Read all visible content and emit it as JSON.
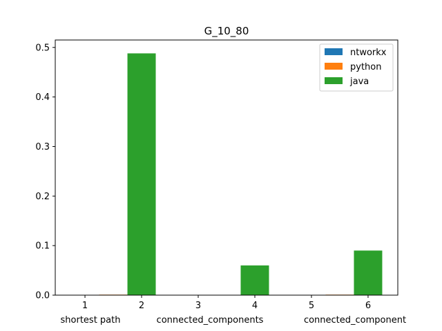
{
  "chart_data": {
    "type": "bar",
    "title": "G_10_80",
    "xlabel": "",
    "ylabel": "",
    "x_ticks": [
      1,
      2,
      3,
      4,
      5,
      6
    ],
    "group_labels": [
      "shortest path",
      "connected_components",
      "connected_component"
    ],
    "ylim": [
      0,
      0.515
    ],
    "y_ticks": [
      "0.0",
      "0.1",
      "0.2",
      "0.3",
      "0.4",
      "0.5"
    ],
    "legend_position": "top-right",
    "grid": false,
    "series": [
      {
        "name": "ntworkx",
        "color": "#1f77b4",
        "x": [
          1,
          3,
          5
        ],
        "values": [
          0.0,
          0.0,
          0.0
        ]
      },
      {
        "name": "python",
        "color": "#ff7f0e",
        "x": [
          1.5,
          5.5
        ],
        "values": [
          0.001,
          0.001
        ]
      },
      {
        "name": "java",
        "color": "#2ca02c",
        "x": [
          2,
          4,
          6
        ],
        "values": [
          0.488,
          0.06,
          0.09
        ]
      }
    ]
  }
}
